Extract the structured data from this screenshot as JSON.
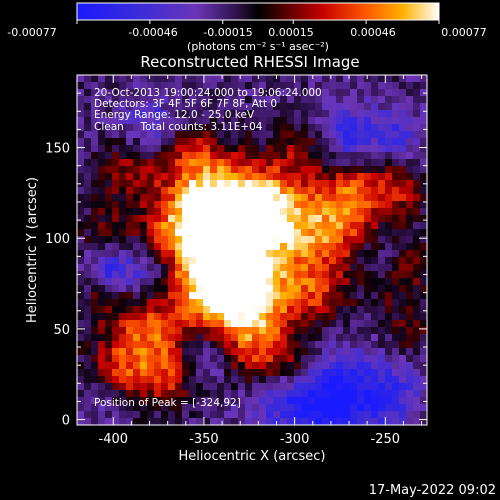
{
  "colorbar": {
    "ticks": [
      "-0.00077",
      "-0.00046",
      "-0.00015",
      "0.00015",
      "0.00046",
      "0.00077"
    ],
    "units_label": "(photons cm⁻² s⁻¹ asec⁻²)"
  },
  "chart_data": {
    "type": "heatmap",
    "title": "Reconstructed RHESSI Image",
    "xlabel": "Heliocentric X (arcsec)",
    "ylabel": "Heliocentric Y (arcsec)",
    "xlim": [
      -420,
      -227
    ],
    "ylim": [
      -3,
      190
    ],
    "xticks": [
      -400,
      -350,
      -300,
      -250
    ],
    "yticks": [
      0,
      50,
      100,
      150
    ],
    "color_range": [
      -0.00077,
      0.00077
    ],
    "annotations": [
      "20-Oct-2013 19:00:24.000 to 19:06:24.000",
      "Detectors: 3F 4F 5F 6F 7F 8F, Att 0",
      "Energy Range: 12.0 - 25.0 keV",
      "Clean     Total counts: 3.11E+04"
    ],
    "peak_label": "Position of Peak = [-324,92]",
    "peak": [
      -324,
      92
    ]
  },
  "footer_timestamp": "17-May-2022 09:02"
}
